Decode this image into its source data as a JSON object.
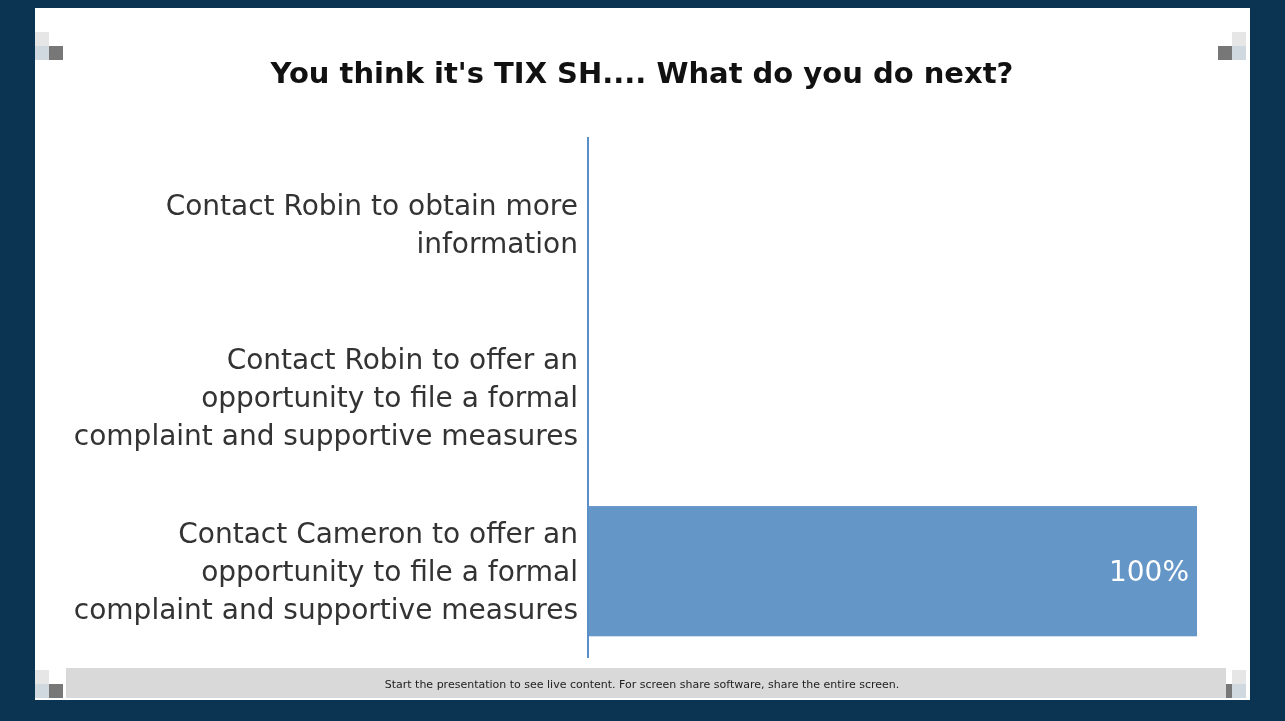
{
  "chart_data": {
    "type": "bar",
    "orientation": "horizontal",
    "title": "You think it's TIX SH.... What do you do next?",
    "categories": [
      "Contact Robin to obtain more information",
      "Contact Robin to offer an opportunity to file a formal complaint and supportive measures",
      "Contact Cameron to offer an opportunity to file a formal complaint and supportive measures"
    ],
    "values": [
      0,
      0,
      100
    ],
    "value_labels": [
      null,
      null,
      "100%"
    ],
    "color": "#6496c7",
    "annotations": [
      "Start the presentation to see live content. For screen share software, share the entire screen."
    ]
  }
}
